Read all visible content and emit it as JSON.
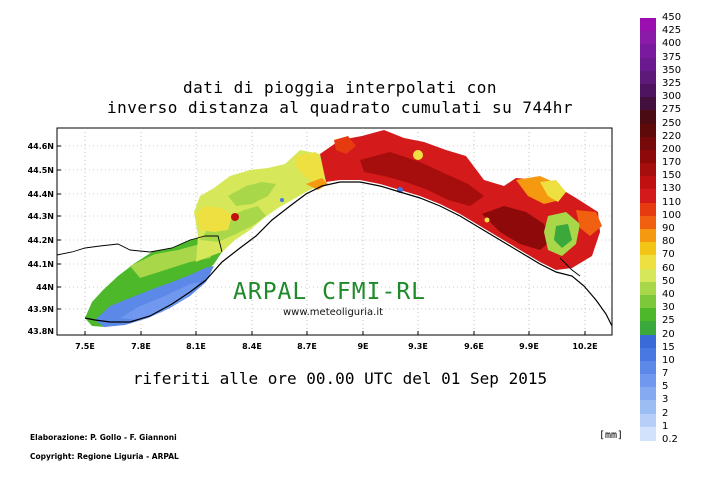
{
  "title_line1": "dati di pioggia interpolati con",
  "title_line2": "inverso distanza al quadrato cumulati su 744hr",
  "watermark": "ARPAL CFMI-RL",
  "website": "www.meteoliguria.it",
  "reference": "riferiti alle ore 00.00 UTC del 01 Sep 2015",
  "credit_line1": "Elaborazione: P. Gollo - F. Giannoni",
  "credit_line2": "Copyright: Regione Liguria - ARPAL",
  "units": "[mm]",
  "lat_labels": [
    "44.6N",
    "44.5N",
    "44.4N",
    "44.3N",
    "44.2N",
    "44.1N",
    "44N",
    "43.9N",
    "43.8N"
  ],
  "lon_labels": [
    "7.5E",
    "7.8E",
    "8.1E",
    "8.4E",
    "8.7E",
    "9E",
    "9.3E",
    "9.6E",
    "9.9E",
    "10.2E"
  ],
  "colorbar": {
    "labels": [
      "450",
      "425",
      "400",
      "375",
      "350",
      "325",
      "300",
      "275",
      "250",
      "220",
      "200",
      "170",
      "150",
      "130",
      "110",
      "100",
      "90",
      "80",
      "70",
      "60",
      "50",
      "40",
      "30",
      "25",
      "20",
      "15",
      "10",
      "7",
      "5",
      "3",
      "2",
      "1",
      "0.2"
    ],
    "colors": [
      "#9b0fb0",
      "#8a1aa8",
      "#7a1a9e",
      "#6a1a8e",
      "#5e1a78",
      "#4f1460",
      "#43103e",
      "#4a0b12",
      "#5e0a0a",
      "#760a0a",
      "#8e0a0a",
      "#a60d0d",
      "#c01010",
      "#d41a1a",
      "#e63a10",
      "#f06010",
      "#f59a10",
      "#f2c418",
      "#eee040",
      "#d6e85a",
      "#a8d84a",
      "#7cc83a",
      "#4cb82a",
      "#3aa83a",
      "#3a6ad8",
      "#4a78e2",
      "#5c88e8",
      "#7098ee",
      "#86aaf2",
      "#9cbcf4",
      "#b6ceF8",
      "#d2e2fc"
    ]
  }
}
